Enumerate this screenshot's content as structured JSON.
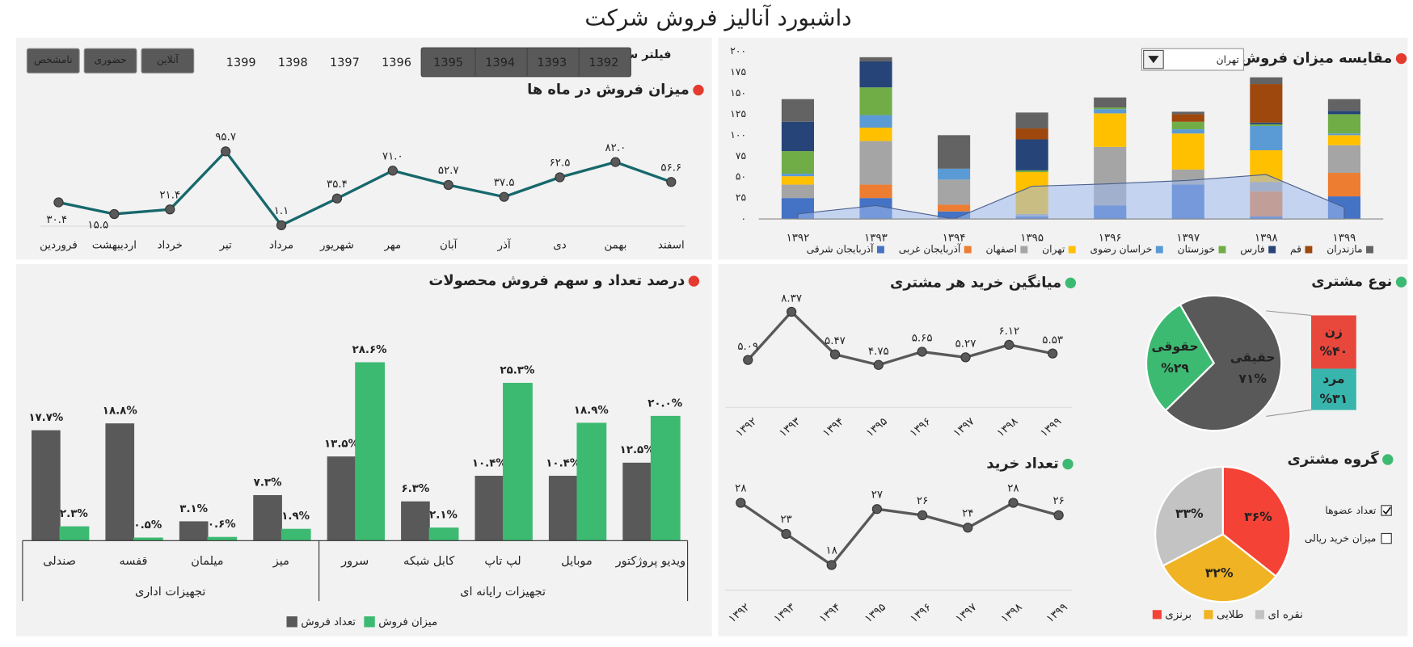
{
  "title": "داشبورد آنالیز فروش شرکت",
  "filter": {
    "label": "فیلتر سال",
    "years": [
      "1392",
      "1393",
      "1394",
      "1395",
      "1396",
      "1397",
      "1398",
      "1399"
    ],
    "selected": [
      true,
      true,
      true,
      true,
      false,
      false,
      false,
      false
    ],
    "channels": [
      "آنلاین",
      "حضوری",
      "نامشخص"
    ]
  },
  "chart_data": [
    {
      "type": "line",
      "title": "میزان فروش در ماه ها",
      "color": "#17686c",
      "point_color": "#595959",
      "categories": [
        "فروردین",
        "اردیبهشت",
        "خرداد",
        "تیر",
        "مرداد",
        "شهریور",
        "مهر",
        "آبان",
        "آذر",
        "دی",
        "بهمن",
        "اسفند"
      ],
      "values": [
        30.4,
        15.5,
        21.4,
        95.7,
        1.1,
        35.4,
        71.0,
        52.7,
        37.5,
        62.5,
        82.0,
        56.6
      ],
      "value_labels": [
        "۳۰.۴",
        "۱۵.۵",
        "۲۱.۴",
        "۹۵.۷",
        "۱.۱",
        "۳۵.۴",
        "۷۱.۰",
        "۵۲.۷",
        "۳۷.۵",
        "۶۲.۵",
        "۸۲.۰",
        "۵۶.۶"
      ]
    },
    {
      "type": "bar",
      "stacked": true,
      "title": "مقایسه میزان فروش",
      "selector": "تهران",
      "grid": false,
      "categories": [
        "۱۳۹۲",
        "۱۳۹۳",
        "۱۳۹۴",
        "۱۳۹۵",
        "۱۳۹۶",
        "۱۳۹۷",
        "۱۳۹۸",
        "۱۳۹۹"
      ],
      "ylim": [
        0,
        200
      ],
      "yticks": [
        {
          "value": 0,
          "label": "۰"
        },
        {
          "value": 25,
          "label": "۲۵"
        },
        {
          "value": 50,
          "label": "۵۰"
        },
        {
          "value": 75,
          "label": "۷۵"
        },
        {
          "value": 100,
          "label": "۱۰۰"
        },
        {
          "value": 125,
          "label": "۱۲۵"
        },
        {
          "value": 150,
          "label": "۱۵۰"
        },
        {
          "value": 175,
          "label": "۱۷۵"
        },
        {
          "value": 200,
          "label": "۲۰۰"
        }
      ],
      "series": [
        {
          "name": "آذربایجان شرقی",
          "color": "#4472c4",
          "values": [
            25,
            25,
            9,
            3,
            16,
            41,
            3,
            27
          ]
        },
        {
          "name": "آذربایجان غربی",
          "color": "#ed7d31",
          "values": [
            0,
            16,
            8,
            0,
            0,
            0,
            30,
            28
          ]
        },
        {
          "name": "اصفهان",
          "color": "#a5a5a5",
          "values": [
            16,
            52,
            30,
            3,
            70,
            18,
            11,
            33
          ]
        },
        {
          "name": "تهران",
          "color": "#ffc000",
          "values": [
            10,
            16,
            0,
            50,
            40,
            43,
            38,
            12
          ]
        },
        {
          "name": "خراسان رضوی",
          "color": "#5b9bd5",
          "values": [
            3,
            15,
            13,
            0,
            5,
            5,
            29,
            2
          ]
        },
        {
          "name": "خوزستان",
          "color": "#70ad47",
          "values": [
            27,
            33,
            0,
            2,
            2,
            9,
            2,
            23
          ]
        },
        {
          "name": "فارس",
          "color": "#264478",
          "values": [
            35,
            31,
            0,
            37,
            0,
            0,
            2,
            4
          ]
        },
        {
          "name": "قم",
          "color": "#9e480e",
          "values": [
            0,
            0,
            0,
            13,
            0,
            9,
            46,
            0
          ]
        },
        {
          "name": "مازندران",
          "color": "#636363",
          "values": [
            27,
            5,
            40,
            19,
            12,
            3,
            8,
            14
          ]
        }
      ],
      "area": {
        "color": "#9fb9ee",
        "values": [
          6,
          16,
          0,
          39,
          42,
          46,
          53,
          14
        ]
      }
    },
    {
      "type": "line",
      "title": "میانگین خرید هر مشتری",
      "color": "#595959",
      "point_color": "#595959",
      "categories": [
        "۱۳۹۲",
        "۱۳۹۳",
        "۱۳۹۴",
        "۱۳۹۵",
        "۱۳۹۶",
        "۱۳۹۷",
        "۱۳۹۸",
        "۱۳۹۹"
      ],
      "values": [
        5.09,
        8.37,
        5.47,
        4.75,
        5.65,
        5.27,
        6.12,
        5.53
      ],
      "value_labels": [
        "۵.۰۹",
        "۸.۳۷",
        "۵.۴۷",
        "۴.۷۵",
        "۵.۶۵",
        "۵.۲۷",
        "۶.۱۲",
        "۵.۵۳"
      ]
    },
    {
      "type": "line",
      "title": "تعداد خرید",
      "color": "#595959",
      "point_color": "#595959",
      "categories": [
        "۱۳۹۲",
        "۱۳۹۳",
        "۱۳۹۴",
        "۱۳۹۵",
        "۱۳۹۶",
        "۱۳۹۷",
        "۱۳۹۸",
        "۱۳۹۹"
      ],
      "values": [
        28,
        23,
        18,
        27,
        26,
        24,
        28,
        26
      ],
      "value_labels": [
        "۲۸",
        "۲۳",
        "۱۸",
        "۲۷",
        "۲۶",
        "۲۴",
        "۲۸",
        "۲۶"
      ]
    },
    {
      "type": "pie",
      "title": "نوع مشتری",
      "categories": [
        "حقیقی",
        "حقوقی"
      ],
      "values": [
        71,
        29
      ],
      "value_labels": [
        "۷۱%",
        "%۲۹"
      ],
      "colors": [
        "#595959",
        "#3dba72"
      ],
      "breakdown": {
        "categories": [
          "زن",
          "مرد"
        ],
        "values": [
          40,
          31
        ],
        "value_labels": [
          "%۴۰",
          "%۳۱"
        ],
        "colors": [
          "#e8473c",
          "#38b5ad"
        ]
      }
    },
    {
      "type": "pie",
      "title": "گروه مشتری",
      "categories": [
        "برنزی",
        "طلایی",
        "نقره ای"
      ],
      "values": [
        36,
        32,
        33
      ],
      "value_labels": [
        "۳۶%",
        "۳۲%",
        "۳۳%"
      ],
      "colors": [
        "#f44336",
        "#f0b323",
        "#c3c3c3"
      ],
      "options": [
        "تعداد عضوها",
        "میزان خرید ریالی"
      ],
      "checked": [
        true,
        false
      ]
    },
    {
      "type": "bar",
      "title": "درصد تعداد و سهم فروش محصولات",
      "categories": [
        "صندلی",
        "قفسه",
        "میلمان",
        "میز",
        "سرور",
        "کابل شبکه",
        "لپ تاپ",
        "موبایل",
        "ویدیو پروژکتور"
      ],
      "groups": [
        "تجهیزات اداری",
        "تجهیزات رایانه ای"
      ],
      "series": [
        {
          "name": "تعداد فروش",
          "color": "#595959",
          "values": [
            17.7,
            18.8,
            3.1,
            7.3,
            13.5,
            6.3,
            10.4,
            10.4,
            12.5
          ],
          "value_labels": [
            "۱۷.۷%",
            "۱۸.۸%",
            "۳.۱%",
            "۷.۳%",
            "۱۳.۵%",
            "۶.۳%",
            "۱۰.۴%",
            "۱۰.۴%",
            "۱۲.۵%"
          ]
        },
        {
          "name": "میزان فروش",
          "color": "#3dba72",
          "values": [
            2.3,
            0.5,
            0.6,
            1.9,
            28.6,
            2.1,
            25.3,
            18.9,
            20.0
          ],
          "value_labels": [
            "۲.۳%",
            "۰.۵%",
            "۰.۶%",
            "۱.۹%",
            "۲۸.۶%",
            "۲.۱%",
            "۲۵.۳%",
            "۱۸.۹%",
            "۲۰.۰%"
          ]
        }
      ]
    }
  ]
}
